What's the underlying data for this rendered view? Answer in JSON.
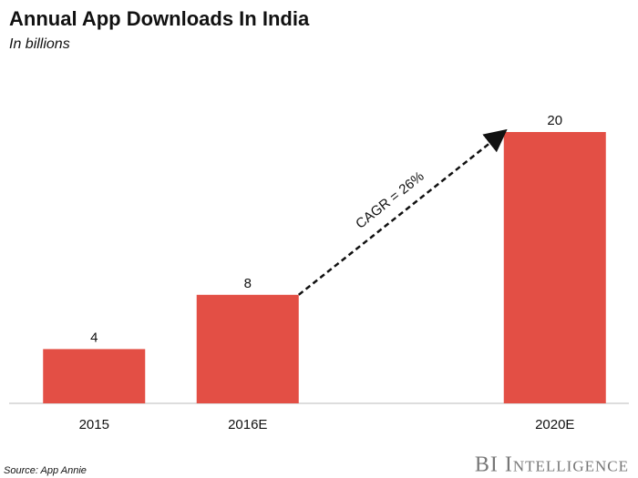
{
  "chart_data": {
    "type": "bar",
    "title": "Annual App Downloads In India",
    "subtitle": "In billions",
    "categories": [
      "2015",
      "2016E",
      null,
      "2020E"
    ],
    "values": [
      4,
      8,
      null,
      20
    ],
    "color": "#e34f45",
    "ylim": [
      0,
      20
    ],
    "annotation": "CAGR = 26%",
    "source": "Source: App Annie",
    "logo": "BI Intelligence"
  }
}
